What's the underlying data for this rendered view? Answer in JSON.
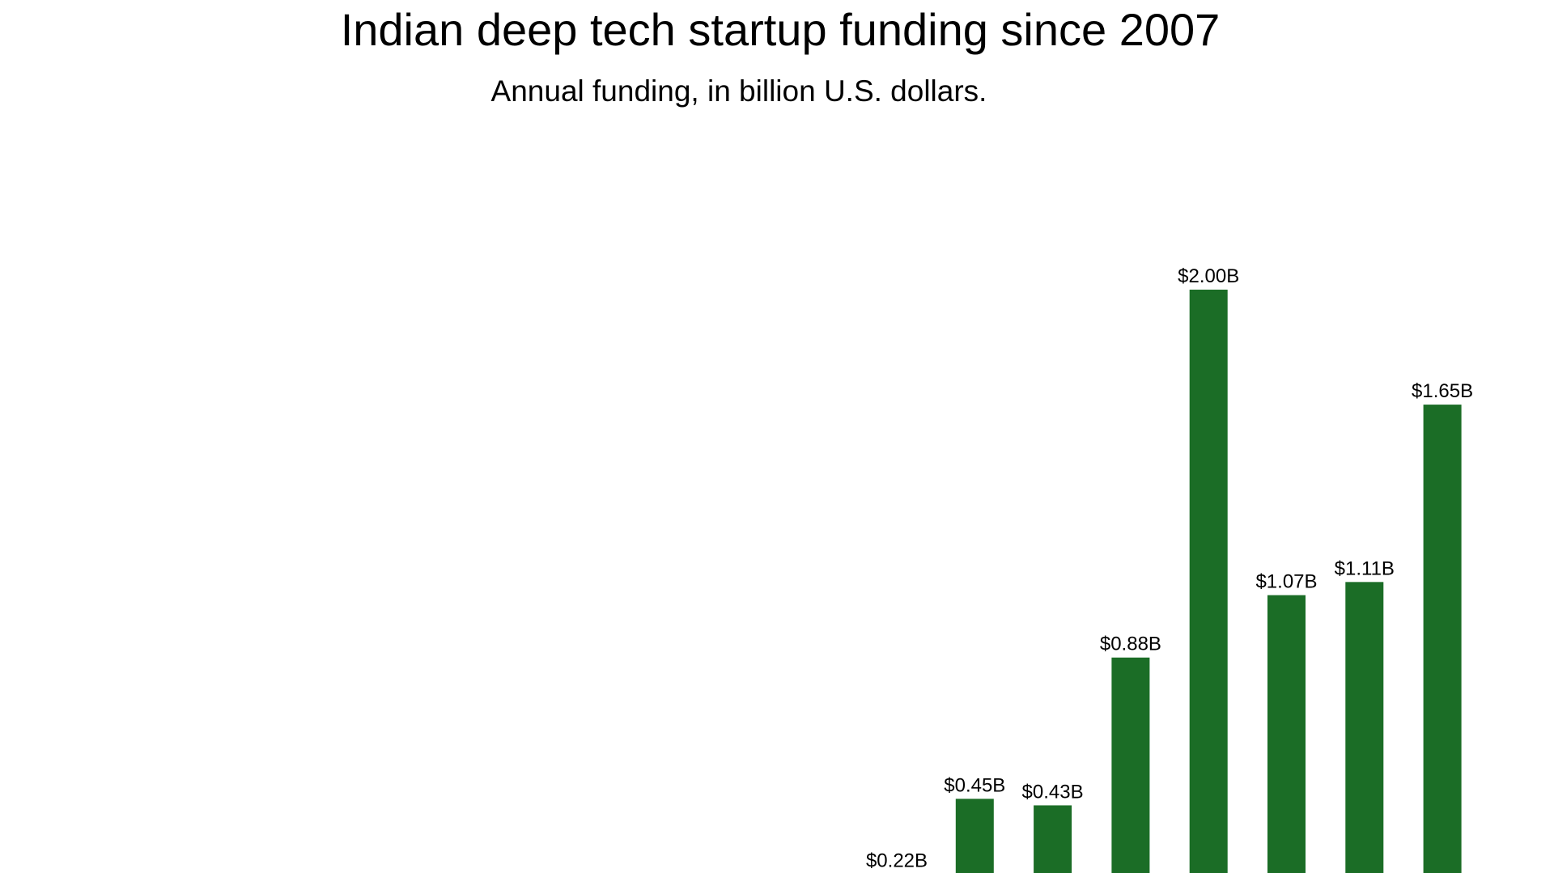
{
  "chart_data": {
    "type": "bar",
    "title": "Indian deep tech startup funding since 2007",
    "subtitle": "Annual funding, in billion U.S. dollars.",
    "values": [
      0.22,
      0.45,
      0.43,
      0.88,
      2.0,
      1.07,
      1.11,
      1.65
    ],
    "data_labels": [
      "$0.22B",
      "$0.45B",
      "$0.43B",
      "$0.88B",
      "$2.00B",
      "$1.07B",
      "$1.11B",
      "$1.65B"
    ],
    "unit": "billion U.S. dollars",
    "grid": false,
    "bar_color": "#1b6d26"
  }
}
